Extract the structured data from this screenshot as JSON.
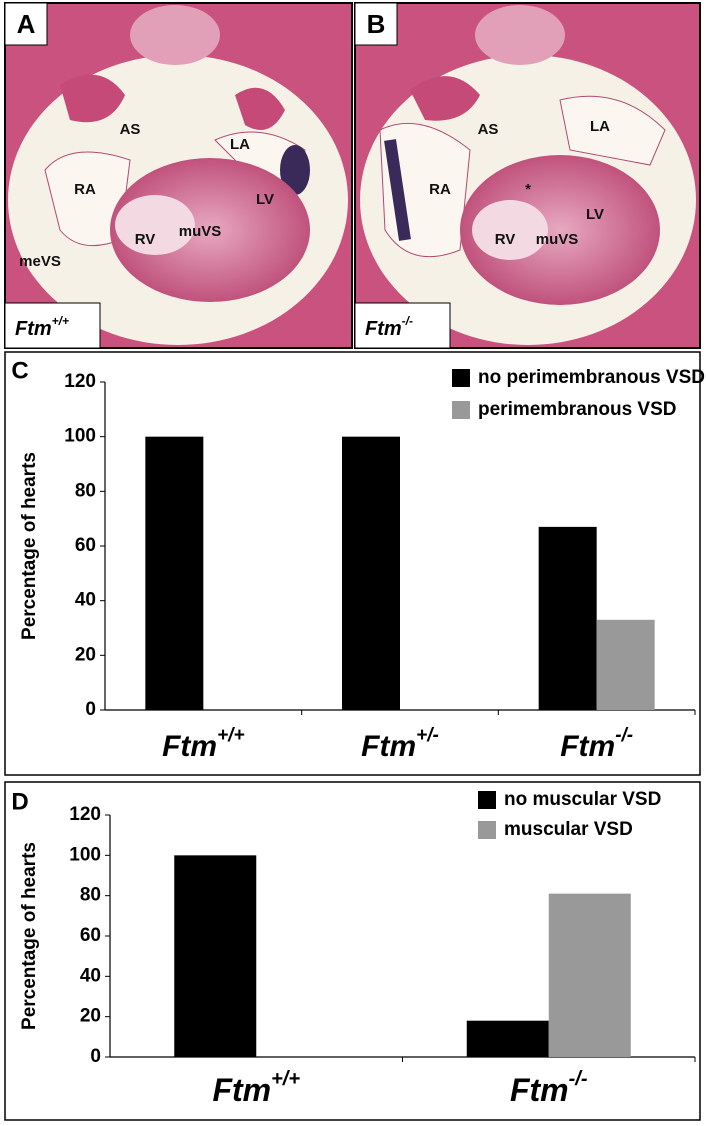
{
  "panels": [
    {
      "letter": "A",
      "labels": [
        "AS",
        "LA",
        "RA",
        "LV",
        "RV",
        "muVS",
        "meVS"
      ],
      "genotype": {
        "text": "Ftm",
        "sup": "+/+"
      }
    },
    {
      "letter": "B",
      "labels": [
        "AS",
        "LA",
        "RA",
        "*",
        "LV",
        "RV",
        "muVS"
      ],
      "genotype": {
        "text": "Ftm",
        "sup": "-/-"
      }
    }
  ],
  "chart_data": [
    {
      "type": "bar",
      "panel": "C",
      "ylabel": "Percentage of hearts",
      "categories": [
        {
          "text": "Ftm",
          "sup": "+/+"
        },
        {
          "text": "Ftm",
          "sup": "+/-"
        },
        {
          "text": "Ftm",
          "sup": "-/-"
        }
      ],
      "series": [
        {
          "name": "no perimembranous VSD",
          "color": "#000000",
          "values": [
            100,
            100,
            67
          ]
        },
        {
          "name": "perimembranous VSD",
          "color": "#999999",
          "values": [
            0,
            0,
            33
          ]
        }
      ],
      "ylim": [
        0,
        120
      ],
      "yticks": [
        0,
        20,
        40,
        60,
        80,
        100,
        120
      ]
    },
    {
      "type": "bar",
      "panel": "D",
      "ylabel": "Percentage of hearts",
      "categories": [
        {
          "text": "Ftm",
          "sup": "+/+"
        },
        {
          "text": "Ftm",
          "sup": "-/-"
        }
      ],
      "series": [
        {
          "name": "no muscular VSD",
          "color": "#000000",
          "values": [
            100,
            18
          ]
        },
        {
          "name": "muscular VSD",
          "color": "#999999",
          "values": [
            0,
            81
          ]
        }
      ],
      "ylim": [
        0,
        120
      ],
      "yticks": [
        0,
        20,
        40,
        60,
        80,
        100,
        120
      ]
    }
  ]
}
